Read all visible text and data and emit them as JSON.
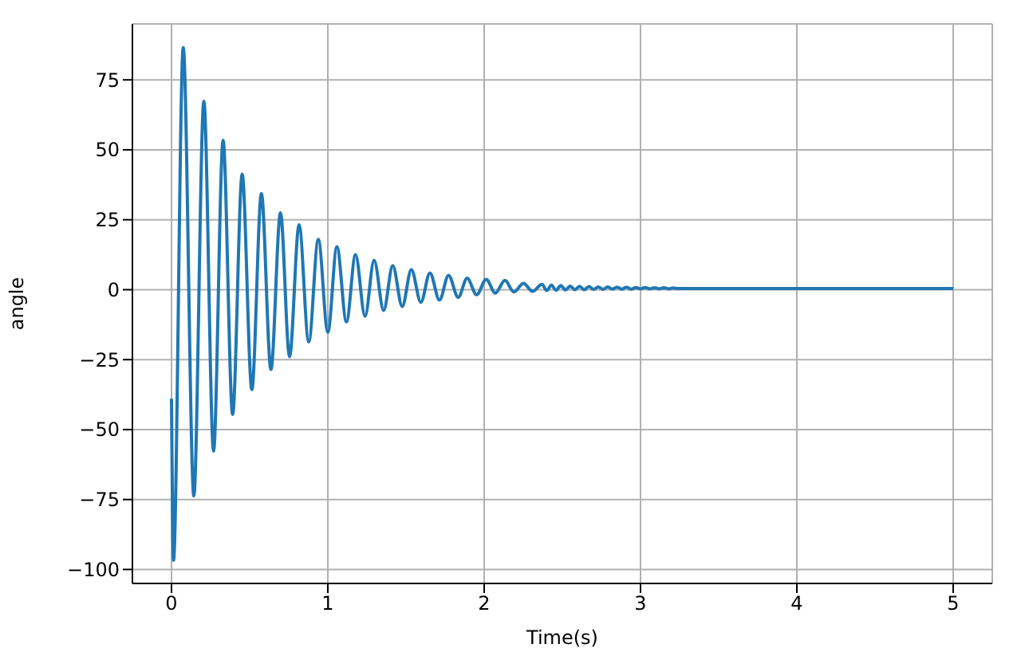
{
  "chart_data": {
    "type": "line",
    "xlabel": "Time(s)",
    "ylabel": "angle",
    "xlim": [
      -0.25,
      5.25
    ],
    "ylim": [
      -105,
      95
    ],
    "xticks": [
      0,
      1,
      2,
      3,
      4,
      5
    ],
    "yticks": [
      -100,
      -75,
      -50,
      -25,
      0,
      25,
      50,
      75
    ],
    "grid": true,
    "legend": false,
    "marker": "none",
    "line_style": "solid",
    "series": [
      {
        "color": "#1f77b4",
        "x": [
          0,
          0.013,
          0.075,
          0.143,
          0.207,
          0.269,
          0.33,
          0.391,
          0.452,
          0.514,
          0.575,
          0.636,
          0.697,
          0.755,
          0.816,
          0.878,
          0.939,
          1.0,
          1.058,
          1.119,
          1.177,
          1.238,
          1.296,
          1.357,
          1.415,
          1.476,
          1.534,
          1.595,
          1.653,
          1.714,
          1.772,
          1.834,
          1.891,
          1.952,
          2.013,
          2.071,
          2.133,
          2.19,
          2.251,
          2.31,
          2.37,
          2.4,
          2.43,
          2.46,
          2.49,
          2.52,
          2.55,
          2.58,
          2.61,
          2.64,
          2.67,
          2.7,
          2.73,
          2.76,
          2.79,
          2.82,
          2.85,
          2.88,
          2.91,
          2.94,
          2.97,
          3.0,
          3.03,
          3.06,
          3.09,
          3.12,
          3.15,
          3.18,
          3.21,
          3.24,
          3.3,
          5.0
        ],
        "values": [
          -39,
          -96.7,
          86.5,
          -73.7,
          67.4,
          -57.7,
          53.4,
          -44.6,
          41.3,
          -35.7,
          34.3,
          -28.5,
          27.5,
          -24,
          23.2,
          -18.7,
          18,
          -15.2,
          15.4,
          -11.5,
          12.5,
          -9.5,
          10.5,
          -7.4,
          8.6,
          -6,
          7.2,
          -4.5,
          6,
          -3.7,
          5.1,
          -2.7,
          4.1,
          -1.8,
          3.7,
          -1.2,
          3.3,
          -0.8,
          2.3,
          -0.6,
          1.9,
          -0.3,
          1.6,
          -0.2,
          1.5,
          -0.1,
          1.3,
          0,
          1.2,
          0,
          1.1,
          0.1,
          1,
          0.1,
          1,
          0.2,
          0.9,
          0.2,
          0.9,
          0.2,
          0.8,
          0.3,
          0.8,
          0.3,
          0.7,
          0.3,
          0.7,
          0.3,
          0.6,
          0.4,
          0.4,
          0.4
        ]
      }
    ]
  }
}
